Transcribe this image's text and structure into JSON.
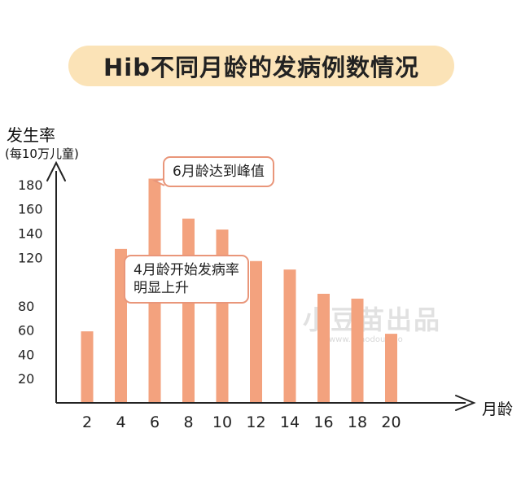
{
  "chart_data": {
    "type": "bar",
    "title": "Hib不同月龄的发病例数情况",
    "ylabel": "发生率",
    "ylabel_unit": "(每10万儿童)",
    "xlabel": "月龄",
    "categories": [
      "2",
      "4",
      "6",
      "8",
      "10",
      "12",
      "14",
      "16",
      "18",
      "20"
    ],
    "values": [
      59,
      127,
      185,
      152,
      143,
      117,
      110,
      90,
      86,
      57
    ],
    "yticks": [
      20,
      40,
      60,
      80,
      120,
      140,
      160,
      180
    ],
    "ylim": [
      0,
      200
    ],
    "grid": false,
    "bar_color": "#f3a27e",
    "annotations": [
      {
        "text": "6月龄达到峰值",
        "category": "6"
      },
      {
        "text": "4月龄开始发病率明显上升",
        "category": "4"
      }
    ]
  },
  "watermark": {
    "text": "小豆苗出品",
    "sub": "www.ixiaodouniao"
  }
}
